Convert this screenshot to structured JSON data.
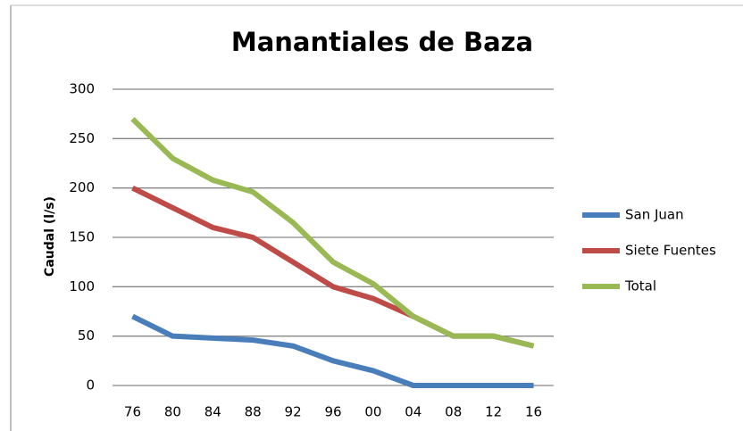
{
  "chart_data": {
    "type": "line",
    "title": "Manantiales de Baza",
    "y_label": "Caudal (l/s)",
    "categories": [
      "76",
      "80",
      "84",
      "88",
      "92",
      "96",
      "00",
      "04",
      "08",
      "12",
      "16"
    ],
    "series": [
      {
        "name": "San Juan",
        "color": "#4a7ebb",
        "values": [
          70,
          50,
          48,
          46,
          40,
          25,
          15,
          0,
          0,
          0,
          0
        ]
      },
      {
        "name": "Siete Fuentes",
        "color": "#be4b48",
        "values": [
          200,
          180,
          160,
          150,
          125,
          100,
          88,
          70,
          50,
          50,
          40
        ]
      },
      {
        "name": "Total",
        "color": "#98b954",
        "values": [
          270,
          230,
          208,
          196,
          165,
          125,
          103,
          70,
          50,
          50,
          40
        ]
      }
    ],
    "ylim": [
      0,
      300
    ],
    "yticks": [
      0,
      50,
      100,
      150,
      200,
      250,
      300
    ],
    "grid": true,
    "legend": "right"
  }
}
